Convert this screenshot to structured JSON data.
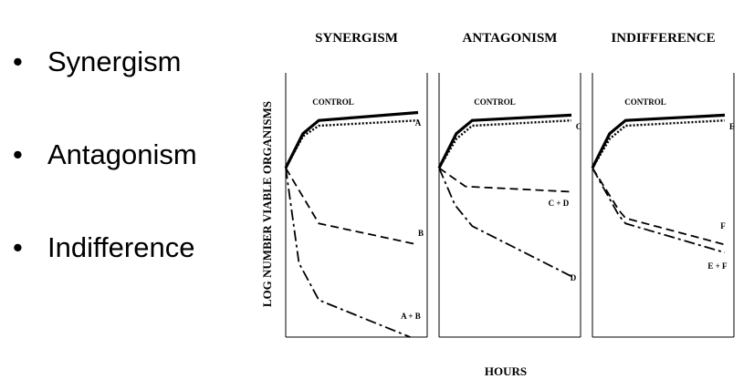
{
  "bullets": [
    {
      "symbol": "•",
      "label": "Synergism"
    },
    {
      "symbol": "•",
      "label": "Antagonism"
    },
    {
      "symbol": "•",
      "label": "Indifference"
    }
  ],
  "chart_data": {
    "type": "line",
    "ylabel": "LOG NUMBER VIABLE ORGANISMS",
    "xlabel": "HOURS",
    "panels": [
      {
        "title": "SYNERGISM",
        "series": [
          {
            "name": "CONTROL",
            "style": "solid",
            "x": [
              0,
              0.13,
              0.25,
              1
            ],
            "y": [
              0.64,
              0.77,
              0.82,
              0.85
            ]
          },
          {
            "name": "A",
            "style": "dotted",
            "x": [
              0,
              0.13,
              0.25,
              1
            ],
            "y": [
              0.64,
              0.76,
              0.8,
              0.82
            ]
          },
          {
            "name": "B",
            "style": "dashed",
            "x": [
              0,
              0.25,
              1
            ],
            "y": [
              0.64,
              0.43,
              0.35
            ]
          },
          {
            "name": "A + B",
            "style": "dashdot",
            "x": [
              0,
              0.1,
              0.25,
              0.94
            ],
            "y": [
              0.64,
              0.28,
              0.14,
              0.0
            ]
          }
        ]
      },
      {
        "title": "ANTAGONISM",
        "series": [
          {
            "name": "CONTROL",
            "style": "solid",
            "x": [
              0,
              0.13,
              0.25,
              1
            ],
            "y": [
              0.64,
              0.77,
              0.82,
              0.84
            ]
          },
          {
            "name": "C",
            "style": "dotted",
            "x": [
              0,
              0.13,
              0.25,
              1
            ],
            "y": [
              0.64,
              0.75,
              0.8,
              0.82
            ]
          },
          {
            "name": "C + D",
            "style": "dashed",
            "x": [
              0,
              0.2,
              1
            ],
            "y": [
              0.64,
              0.57,
              0.55
            ]
          },
          {
            "name": "D",
            "style": "dashdot",
            "x": [
              0,
              0.12,
              0.25,
              1
            ],
            "y": [
              0.64,
              0.5,
              0.42,
              0.23
            ]
          }
        ]
      },
      {
        "title": "INDIFFERENCE",
        "series": [
          {
            "name": "CONTROL",
            "style": "solid",
            "x": [
              0,
              0.13,
              0.25,
              1
            ],
            "y": [
              0.64,
              0.77,
              0.82,
              0.84
            ]
          },
          {
            "name": "E",
            "style": "dotted",
            "x": [
              0,
              0.13,
              0.25,
              1
            ],
            "y": [
              0.64,
              0.75,
              0.8,
              0.82
            ]
          },
          {
            "name": "F",
            "style": "dashed",
            "x": [
              0,
              0.2,
              0.25,
              1
            ],
            "y": [
              0.64,
              0.48,
              0.45,
              0.35
            ]
          },
          {
            "name": "E + F",
            "style": "dashdot",
            "x": [
              0,
              0.2,
              0.25,
              1
            ],
            "y": [
              0.64,
              0.46,
              0.43,
              0.32
            ]
          }
        ]
      }
    ]
  }
}
